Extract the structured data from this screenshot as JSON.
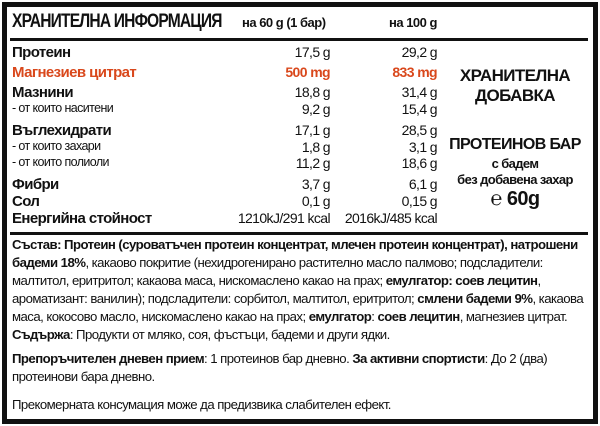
{
  "header": {
    "title": "ХРАНИТЕЛНА ИНФОРМАЦИЯ",
    "col1": "на 60 g (1 бар)",
    "col2": "на 100 g"
  },
  "rows": [
    {
      "label": "Протеин",
      "v1": "17,5 g",
      "v2": "29,2 g"
    },
    {
      "label": "Магнезиев цитрат",
      "v1": "500 mg",
      "v2": "833 mg"
    },
    {
      "label": "Мазнини",
      "v1": "18,8 g",
      "v2": "31,4 g"
    },
    {
      "label": "- от които наситени",
      "v1": "9,2 g",
      "v2": "15,4 g"
    },
    {
      "label": "Въглехидрати",
      "v1": "17,1 g",
      "v2": "28,5 g"
    },
    {
      "label": "- от които захари",
      "v1": "1,8 g",
      "v2": "3,1 g"
    },
    {
      "label": "- от които полиоли",
      "v1": "11,2 g",
      "v2": "18,6 g"
    },
    {
      "label": "Фибри",
      "v1": "3,7 g",
      "v2": "6,1 g"
    },
    {
      "label": "Сол",
      "v1": "0,1 g",
      "v2": "0,15 g"
    },
    {
      "label": "Енергийна стойност",
      "v1": "1210kJ/291 kcal",
      "v2": "2016kJ/485 kcal"
    }
  ],
  "highlight_color": "#d9481c",
  "side": {
    "line1": "ХРАНИТЕЛНА",
    "line2": "ДОБАВКА",
    "product": "ПРОТЕИНОВ БАР",
    "sub1": "с бадем",
    "sub2": "без добавена захар",
    "estimated_mark": "℮",
    "weight": "60g"
  },
  "composition": {
    "p1b": "Състав: Протеин (суроватъчен протеин концентрат, млечен протеин концентрат), натрошени  бадеми 18%",
    "p2": ", какаово покритие (нехидрогенирано растително масло палмово; подсладители: малтитол, еритритол; какаова маса, нискомаслено какао на прах; ",
    "p3b": "емулгатор: соев лецитин",
    "p4": ", ароматизант: ванилин); подсладители: сорбитол, малтитол, еритритол; ",
    "p5b": "смлени бадеми 9%",
    "p6": ", какаова маса, кокосово масло, нискомаслено какао на прах; ",
    "p7b": "емулгатор",
    "p8": ": ",
    "p9b": "соев лецитин",
    "p10": ", магнезиев цитрат. ",
    "p11b": "Съдържа",
    "p12": ": Продукти от мляко, соя, фъстъци, бадеми и други ядки."
  },
  "dose": {
    "b1": "Препоръчителен дневен прием",
    "t1": ": 1 протеинов бар дневно. ",
    "b2": "За активни спортисти",
    "t2": ": До 2 (два) протеинови бара дневно."
  },
  "warning": "Прекомерната консумация може да предизвика слабителен ефект."
}
